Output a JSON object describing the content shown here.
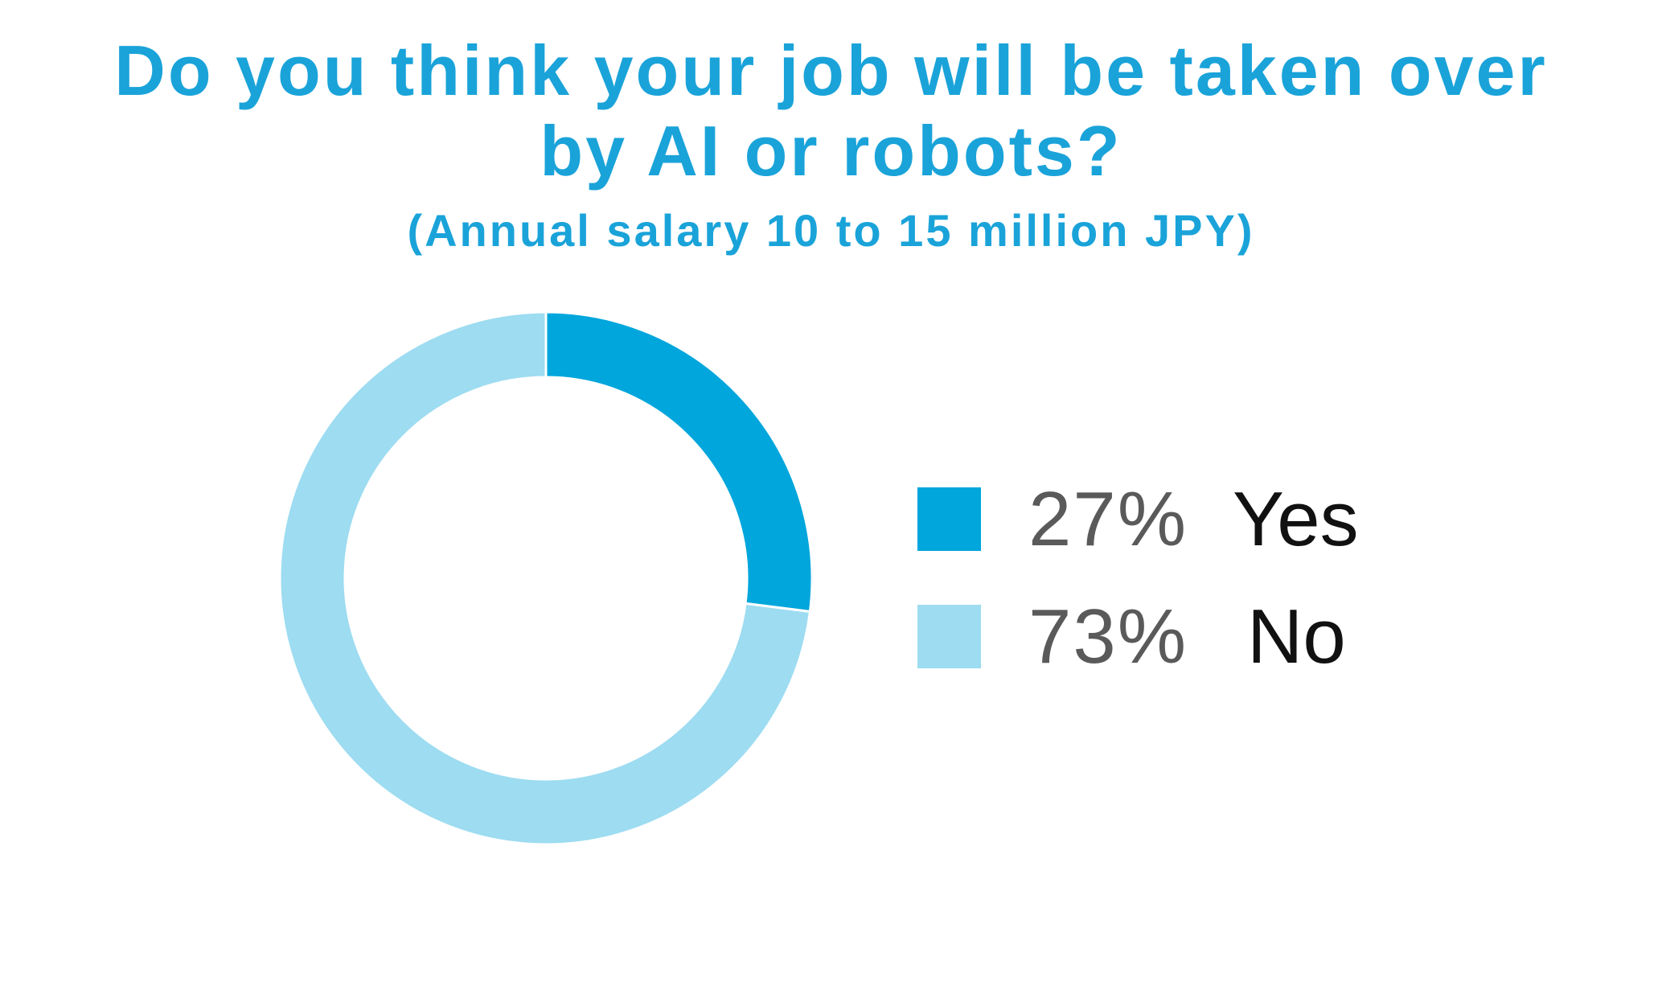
{
  "chart_data": {
    "type": "pie",
    "style": "donut",
    "title": "Do you think your job will be taken over by AI or robots?",
    "title_lines": [
      "Do you think your job will be taken over",
      "by AI or robots?"
    ],
    "subtitle": "(Annual salary 10 to 15 million JPY)",
    "legend_position": "right",
    "slices": [
      {
        "label": "Yes",
        "value": 27,
        "display": "27%",
        "color": "#00a6dc"
      },
      {
        "label": "No",
        "value": 73,
        "display": "73%",
        "color": "#9ddcf1"
      }
    ]
  }
}
